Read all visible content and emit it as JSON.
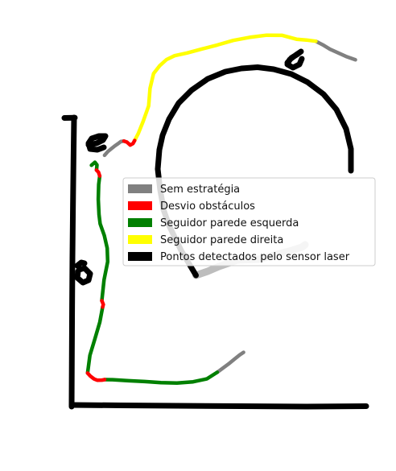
{
  "chart_data": {
    "type": "line",
    "title": "",
    "xlabel": "",
    "ylabel": "",
    "axes_visible": false,
    "grid": false,
    "legend_position": "center-right",
    "series": [
      {
        "name": "Sem estratégia",
        "color": "#808080",
        "segments": [
          [
            [
              129.9,
              192.9
            ],
            [
              133.9,
              188.3
            ],
            [
              137.9,
              185.0
            ],
            [
              142.0,
              181.7
            ],
            [
              146.0,
              178.9
            ],
            [
              150.0,
              175.9
            ],
            [
              154.0,
              175.2
            ]
          ],
          [
            [
              269.9,
              462.4
            ],
            [
              276.8,
              457.3
            ],
            [
              283.9,
              452.1
            ],
            [
              290.9,
              446.4
            ],
            [
              297.9,
              440.7
            ],
            [
              302.6,
              437.6
            ]
          ],
          [
            [
              392.4,
              51.2
            ],
            [
              400.9,
              55.6
            ],
            [
              409.9,
              61.1
            ],
            [
              419.9,
              65.6
            ],
            [
              429.9,
              70.1
            ],
            [
              441.6,
              74.3
            ]
          ]
        ]
      },
      {
        "name": "Desvio obstáculos",
        "color": "#ff0000",
        "segments": [
          [
            [
              154.0,
              175.2
            ],
            [
              157.7,
              176.5
            ],
            [
              161.8,
              180.2
            ],
            [
              165.2,
              178.3
            ],
            [
              167.3,
              174.5
            ]
          ],
          [
            [
              119.9,
              211.3
            ],
            [
              122.4,
              213.9
            ],
            [
              123.9,
              218.6
            ]
          ],
          [
            [
              126.5,
              373.5
            ],
            [
              128.4,
              378.2
            ],
            [
              127.5,
              381.4
            ]
          ],
          [
            [
              108.8,
              463.4
            ],
            [
              112.1,
              467.0
            ],
            [
              116.9,
              470.7
            ],
            [
              121.0,
              472.3
            ],
            [
              126.6,
              472.1
            ],
            [
              130.0,
              471.5
            ]
          ]
        ]
      },
      {
        "name": "Seguidor parede esquerda",
        "color": "#008000",
        "segments": [
          [
            [
              123.9,
              218.6
            ],
            [
              122.6,
              229.2
            ],
            [
              122.1,
              247.6
            ],
            [
              123.0,
              266.3
            ],
            [
              124.4,
              277.9
            ],
            [
              129.6,
              292.5
            ],
            [
              133.2,
              308.3
            ],
            [
              133.8,
              325.0
            ],
            [
              129.3,
              347.4
            ],
            [
              126.5,
              373.5
            ]
          ],
          [
            [
              127.5,
              381.4
            ],
            [
              124.0,
              400.1
            ],
            [
              117.8,
              421.3
            ],
            [
              111.7,
              441.4
            ],
            [
              108.8,
              463.4
            ]
          ],
          [
            [
              130.0,
              471.5
            ],
            [
              139.9,
              471.6
            ],
            [
              159.9,
              472.9
            ],
            [
              179.9,
              473.9
            ],
            [
              199.9,
              475.2
            ],
            [
              219.9,
              475.7
            ],
            [
              239.9,
              474.2
            ],
            [
              256.9,
              470.6
            ],
            [
              269.9,
              462.4
            ]
          ],
          [
            [
              113.6,
              205.3
            ],
            [
              117.9,
              201.5
            ],
            [
              120.5,
              204.9
            ],
            [
              119.9,
              211.3
            ]
          ]
        ]
      },
      {
        "name": "Seguidor parede direita",
        "color": "#ffff00",
        "segments": [
          [
            [
              167.3,
              174.5
            ],
            [
              171.8,
              165.8
            ],
            [
              177.9,
              150.6
            ],
            [
              184.7,
              131.5
            ],
            [
              186.4,
              109.8
            ],
            [
              190.8,
              91.4
            ],
            [
              198.6,
              81.4
            ],
            [
              206.9,
              74.0
            ],
            [
              216.9,
              69.2
            ],
            [
              232.4,
              65.8
            ],
            [
              251.9,
              60.6
            ],
            [
              270.0,
              55.9
            ],
            [
              289.8,
              50.2
            ],
            [
              309.9,
              46.4
            ],
            [
              331.2,
              43.7
            ],
            [
              350.7,
              43.9
            ],
            [
              368.4,
              48.7
            ],
            [
              380.6,
              49.7
            ],
            [
              392.4,
              51.2
            ]
          ]
        ]
      },
      {
        "name": "Pontos detectados pelo sensor laser",
        "color": "#000000",
        "segments": [
          [
            [
              80.0,
              146.5
            ],
            [
              93.0,
              146.2
            ]
          ],
          [
            [
              92.0,
              146.0
            ],
            [
              91.3,
              200.0
            ],
            [
              90.6,
              260.0
            ],
            [
              90.0,
              320.0
            ],
            [
              89.6,
              380.0
            ],
            [
              89.3,
              440.0
            ],
            [
              89.0,
              505.0
            ]
          ],
          [
            [
              89.0,
              503.0
            ],
            [
              150.0,
              503.5
            ],
            [
              220.0,
              504.0
            ],
            [
              300.0,
              504.5
            ],
            [
              380.0,
              505.0
            ],
            [
              455.0,
              504.5
            ]
          ],
          [
            [
              243.5,
              342.0
            ],
            [
              225.0,
              311.0
            ],
            [
              210.0,
              280.0
            ],
            [
              203.0,
              260.0
            ]
          ],
          [
            [
              203.0,
              258.0
            ],
            [
              199.0,
              236.0
            ],
            [
              196.0,
              210.0
            ],
            [
              198.0,
              186.0
            ],
            [
              202.0,
              168.0
            ],
            [
              210.0,
              148.0
            ],
            [
              222.0,
              128.0
            ],
            [
              238.0,
              112.0
            ],
            [
              258.0,
              98.0
            ],
            [
              280.0,
              89.0
            ],
            [
              300.0,
              85.0
            ],
            [
              320.0,
              83.5
            ],
            [
              340.0,
              86.0
            ],
            [
              362.0,
              92.0
            ],
            [
              382.0,
              102.0
            ],
            [
              402.0,
              117.0
            ],
            [
              418.0,
              136.0
            ],
            [
              430.0,
              160.0
            ],
            [
              436.0,
              185.0
            ],
            [
              436.0,
              212.0
            ]
          ],
          [
            [
              110.0,
              180.0
            ],
            [
              120.0,
              178.0
            ],
            [
              128.0,
              174.0
            ],
            [
              131.0,
              169.0
            ],
            [
              123.0,
              169.0
            ],
            [
              114.0,
              172.0
            ],
            [
              110.0,
              178.0
            ],
            [
              112.0,
              185.0
            ],
            [
              121.0,
              186.0
            ],
            [
              129.0,
              183.0
            ]
          ],
          [
            [
              96.0,
              330.0
            ],
            [
              101.0,
              326.0
            ],
            [
              105.0,
              327.0
            ]
          ],
          [
            [
              97.0,
              337.0
            ],
            [
              96.0,
              345.0
            ],
            [
              103.0,
              351.0
            ],
            [
              110.0,
              348.0
            ],
            [
              112.0,
              340.0
            ],
            [
              105.0,
              333.0
            ],
            [
              98.0,
              335.0
            ]
          ],
          [
            [
              357.0,
              78.0
            ],
            [
              362.0,
              72.0
            ],
            [
              370.0,
              67.0
            ],
            [
              374.0,
              64.0
            ],
            [
              368.0,
              68.0
            ],
            [
              360.0,
              74.0
            ],
            [
              357.0,
              80.0
            ],
            [
              364.0,
              84.0
            ],
            [
              372.0,
              80.0
            ],
            [
              375.0,
              73.0
            ]
          ]
        ]
      },
      {
        "name": "",
        "color": "#bdbdbd",
        "segments": [
          [
            [
              243.5,
              342.0
            ],
            [
              258.0,
              337.0
            ],
            [
              272.0,
              331.0
            ],
            [
              295.0,
              323.0
            ],
            [
              321.0,
              322.0
            ],
            [
              341.0,
              317.0
            ],
            [
              359.0,
              312.0
            ],
            [
              375.0,
              307.0
            ],
            [
              379.0,
              304.0
            ]
          ]
        ]
      }
    ]
  }
}
